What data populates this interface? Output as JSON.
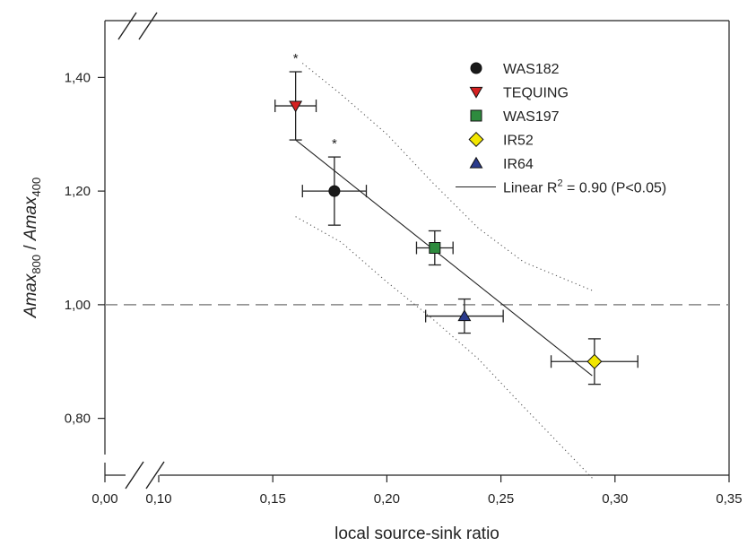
{
  "chart_data": {
    "type": "scatter",
    "xlabel": "local source-sink ratio",
    "ylabel": {
      "parts": [
        {
          "text": "Amax",
          "italic": true
        },
        {
          "text": "800",
          "sub": true
        },
        {
          "text": " / ",
          "italic": false
        },
        {
          "text": "Amax",
          "italic": true
        },
        {
          "text": "400",
          "sub": true
        }
      ]
    },
    "x_axis": {
      "break": true,
      "ticks": [
        {
          "value": 0.0,
          "label": "0,00"
        },
        {
          "value": 0.1,
          "label": "0,10"
        },
        {
          "value": 0.15,
          "label": "0,15"
        },
        {
          "value": 0.2,
          "label": "0,20"
        },
        {
          "value": 0.25,
          "label": "0,25"
        },
        {
          "value": 0.3,
          "label": "0,30"
        },
        {
          "value": 0.35,
          "label": "0,35"
        }
      ],
      "xlim": [
        0.1,
        0.35
      ]
    },
    "y_axis": {
      "break": true,
      "ticks": [
        {
          "value": 0.8,
          "label": "0,80"
        },
        {
          "value": 1.0,
          "label": "1,00"
        },
        {
          "value": 1.2,
          "label": "1,20"
        },
        {
          "value": 1.4,
          "label": "1,40"
        }
      ],
      "ylim": [
        0.7,
        1.5
      ]
    },
    "reference_line": {
      "y": 1.0,
      "style": "dashed"
    },
    "series": [
      {
        "name": "WAS182",
        "marker": "circle",
        "color": "#1a1a1a",
        "x": 0.177,
        "y": 1.2,
        "xerr": 0.014,
        "yerr": 0.06,
        "annotation": "*"
      },
      {
        "name": "TEQUING",
        "marker": "triangle-down",
        "color": "#d42020",
        "x": 0.16,
        "y": 1.35,
        "xerr": 0.009,
        "yerr": 0.06,
        "annotation": "*"
      },
      {
        "name": "WAS197",
        "marker": "square",
        "color": "#2e8b3e",
        "x": 0.221,
        "y": 1.1,
        "xerr": 0.008,
        "yerr": 0.03,
        "annotation": ""
      },
      {
        "name": "IR52",
        "marker": "diamond",
        "color": "#f2e600",
        "x": 0.291,
        "y": 0.9,
        "xerr": 0.019,
        "yerr": 0.04,
        "annotation": ""
      },
      {
        "name": "IR64",
        "marker": "triangle-up",
        "color": "#2a3a8c",
        "x": 0.234,
        "y": 0.98,
        "xerr": 0.017,
        "yerr": 0.03,
        "annotation": ""
      }
    ],
    "fit": {
      "legend_label": "Linear R",
      "legend_sup": "2",
      "legend_rest": " = 0.90 (P<0.05)",
      "line": [
        [
          0.16,
          1.29
        ],
        [
          0.29,
          0.875
        ]
      ],
      "ci_upper": [
        [
          0.163,
          1.425
        ],
        [
          0.18,
          1.37
        ],
        [
          0.2,
          1.3
        ],
        [
          0.22,
          1.215
        ],
        [
          0.24,
          1.135
        ],
        [
          0.26,
          1.075
        ],
        [
          0.29,
          1.025
        ]
      ],
      "ci_lower": [
        [
          0.16,
          1.155
        ],
        [
          0.18,
          1.11
        ],
        [
          0.2,
          1.04
        ],
        [
          0.22,
          0.975
        ],
        [
          0.24,
          0.905
        ],
        [
          0.26,
          0.82
        ],
        [
          0.29,
          0.695
        ]
      ]
    },
    "legend_position": "top-right",
    "grid": false
  }
}
